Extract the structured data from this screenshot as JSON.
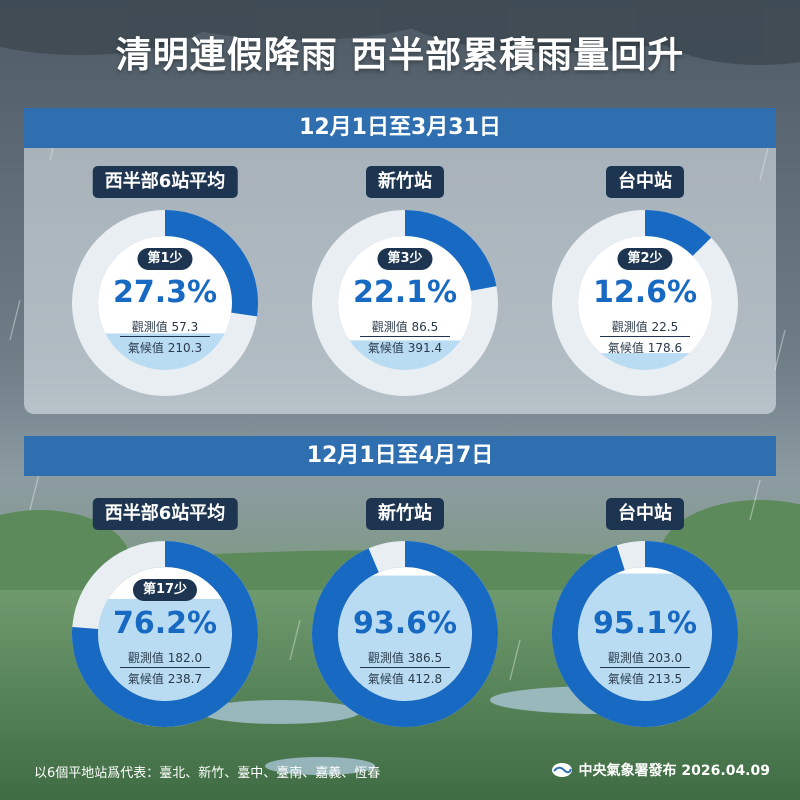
{
  "title": "清明連假降雨 西半部累積雨量回升",
  "colors": {
    "fill": "#1769c2",
    "track": "#e9eef3",
    "water": "#b9dcf2",
    "header": "#2f6fb0",
    "label_bg": "#1d3550"
  },
  "footer": {
    "note": "以6個平地站爲代表：臺北、新竹、臺中、臺南、嘉義、恆春",
    "publisher": "中央氣象署發布 2026.04.09"
  },
  "chart_data": [
    {
      "type": "pie",
      "title": "12月1日至3月31日",
      "series": [
        {
          "name": "西半部6站平均",
          "rank": "第1少",
          "percent_label": "27.3%",
          "percent": 27.3,
          "observed_label": "觀測值 57.3",
          "observed": 57.3,
          "climate_label": "氣候值 210.3",
          "climate": 210.3
        },
        {
          "name": "新竹站",
          "rank": "第3少",
          "percent_label": "22.1%",
          "percent": 22.1,
          "observed_label": "觀測值 86.5",
          "observed": 86.5,
          "climate_label": "氣候值 391.4",
          "climate": 391.4
        },
        {
          "name": "台中站",
          "rank": "第2少",
          "percent_label": "12.6%",
          "percent": 12.6,
          "observed_label": "觀測值 22.5",
          "observed": 22.5,
          "climate_label": "氣候值 178.6",
          "climate": 178.6
        }
      ]
    },
    {
      "type": "pie",
      "title": "12月1日至4月7日",
      "series": [
        {
          "name": "西半部6站平均",
          "rank": "第17少",
          "percent_label": "76.2%",
          "percent": 76.2,
          "observed_label": "觀測值 182.0",
          "observed": 182.0,
          "climate_label": "氣候值 238.7",
          "climate": 238.7
        },
        {
          "name": "新竹站",
          "rank": "",
          "percent_label": "93.6%",
          "percent": 93.6,
          "observed_label": "觀測值 386.5",
          "observed": 386.5,
          "climate_label": "氣候值 412.8",
          "climate": 412.8
        },
        {
          "name": "台中站",
          "rank": "",
          "percent_label": "95.1%",
          "percent": 95.1,
          "observed_label": "觀測值 203.0",
          "observed": 203.0,
          "climate_label": "氣候值 213.5",
          "climate": 213.5
        }
      ]
    }
  ]
}
